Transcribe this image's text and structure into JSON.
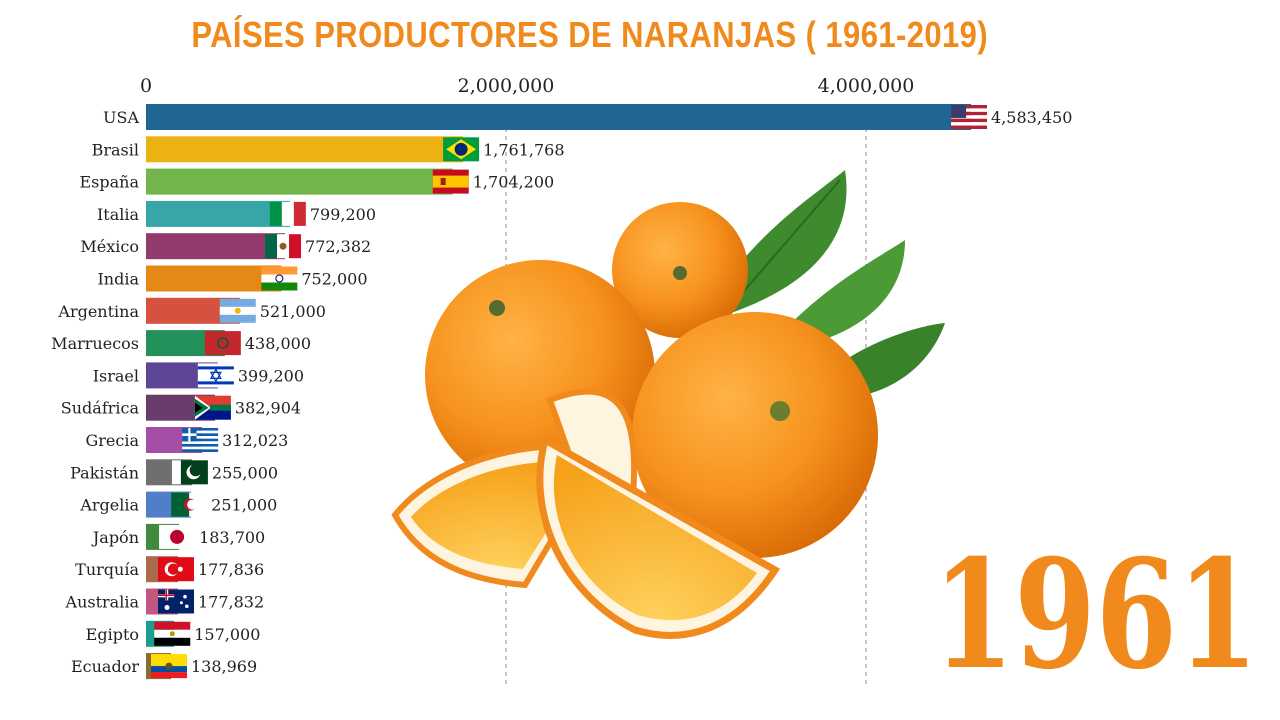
{
  "title": "PAÍSES PRODUCTORES DE NARANJAS ( 1961-2019)",
  "year": "1961",
  "colors": {
    "accent": "#f08a1c",
    "grid": "#888888",
    "text": "#222222"
  },
  "illustration": "oranges-with-leaves",
  "chart_data": {
    "type": "bar",
    "orientation": "horizontal",
    "title": "PAÍSES PRODUCTORES DE NARANJAS ( 1961-2019)",
    "xlim": [
      0,
      4800000
    ],
    "x_ticks": [
      0,
      2000000,
      4000000
    ],
    "x_tick_labels": [
      "0",
      "2,000,000",
      "4,000,000"
    ],
    "grid": true,
    "categories": [
      "USA",
      "Brasil",
      "España",
      "Italia",
      "México",
      "India",
      "Argentina",
      "Marruecos",
      "Israel",
      "Sudáfrica",
      "Grecia",
      "Pakistán",
      "Argelia",
      "Japón",
      "Turquía",
      "Australia",
      "Egipto",
      "Ecuador"
    ],
    "values": [
      4583450,
      1761768,
      1704200,
      799200,
      772382,
      752000,
      521000,
      438000,
      399200,
      382904,
      312023,
      255000,
      251000,
      183700,
      177836,
      177832,
      157000,
      138969
    ],
    "value_labels": [
      "4,583,450",
      "1,761,768",
      "1,704,200",
      "799,200",
      "772,382",
      "752,000",
      "521,000",
      "438,000",
      "399,200",
      "382,904",
      "312,023",
      "255,000",
      "251,000",
      "183,700",
      "177,836",
      "177,832",
      "157,000",
      "138,969"
    ],
    "bar_colors": [
      "#1f6694",
      "#ecb113",
      "#72b54a",
      "#38a6a8",
      "#933a6c",
      "#e58816",
      "#d4523f",
      "#24915a",
      "#5e4597",
      "#6a3c6c",
      "#a64ea6",
      "#6f6f6f",
      "#4f7fc9",
      "#3f8a3f",
      "#a86b4e",
      "#c2577f",
      "#1d9d8f",
      "#8a6d2c"
    ],
    "flags": [
      "flag-usa",
      "flag-brasil",
      "flag-espana",
      "flag-italia",
      "flag-mexico",
      "flag-india",
      "flag-argentina",
      "flag-marruecos",
      "flag-israel",
      "flag-sudafrica",
      "flag-grecia",
      "flag-pakistan",
      "flag-argelia",
      "flag-japon",
      "flag-turquia",
      "flag-australia",
      "flag-egipto",
      "flag-ecuador"
    ]
  }
}
